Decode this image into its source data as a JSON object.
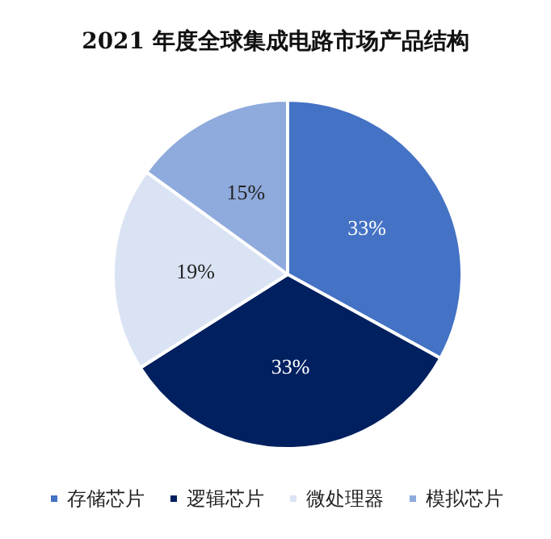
{
  "chart_data": {
    "type": "pie",
    "title": "2021 年度全球集成电路市场产品结构",
    "categories": [
      "存储芯片",
      "逻辑芯片",
      "微处理器",
      "模拟芯片"
    ],
    "values": [
      33,
      33,
      19,
      15
    ],
    "colors": [
      "#4472c4",
      "#002060",
      "#dae3f3",
      "#8faadc"
    ],
    "value_labels": [
      "33%",
      "33%",
      "19%",
      "15%"
    ],
    "legend": "bottom"
  }
}
